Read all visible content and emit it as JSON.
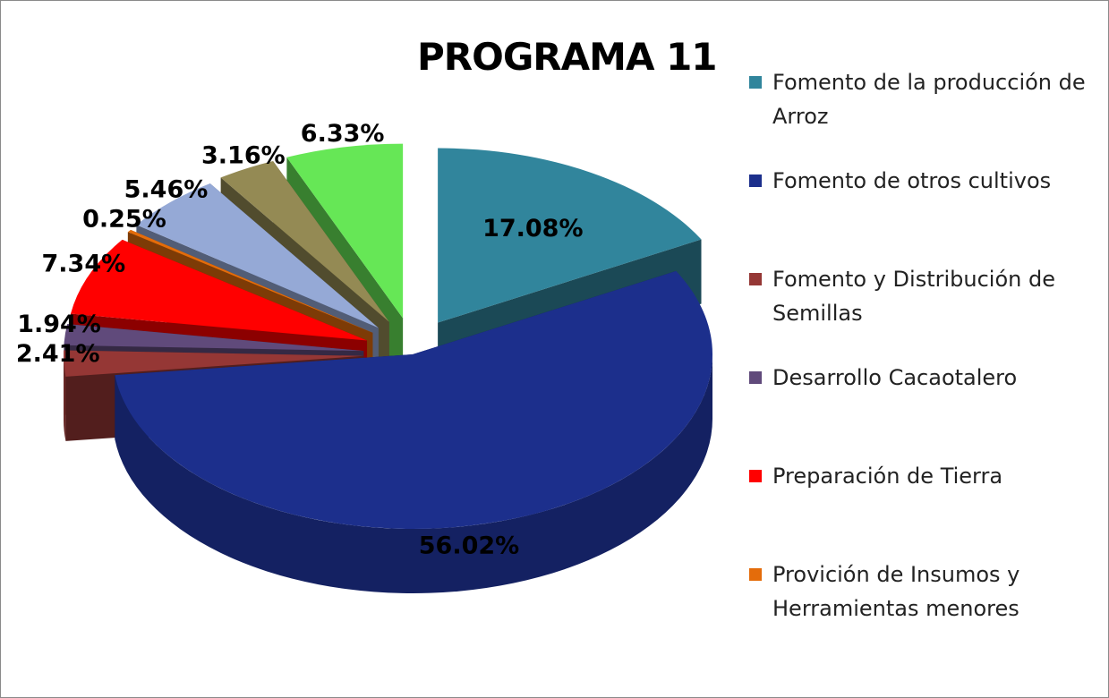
{
  "chart_data": {
    "type": "pie",
    "title": "PROGRAMA 11",
    "categories": [
      "Fomento de la producción de Arroz",
      "Fomento de otros cultivos",
      "Fomento y Distribución de Semillas",
      "Desarrollo Cacaotalero",
      "Preparación de Tierra",
      "Provición de Insumos y Herramientas menores",
      null,
      null,
      null
    ],
    "values": [
      17.08,
      56.02,
      2.41,
      1.94,
      7.34,
      0.25,
      5.46,
      3.16,
      6.33
    ],
    "value_labels": [
      "17.08%",
      "56.02%",
      "2.41%",
      "1.94%",
      "7.34%",
      "0.25%",
      "5.46%",
      "3.16%",
      "6.33%"
    ],
    "colors": [
      "#31859c",
      "#1c2f8c",
      "#953735",
      "#604a7b",
      "#ff0000",
      "#e46c0a",
      "#95a9d6",
      "#948a54",
      "#66e756"
    ],
    "legend": "right"
  }
}
